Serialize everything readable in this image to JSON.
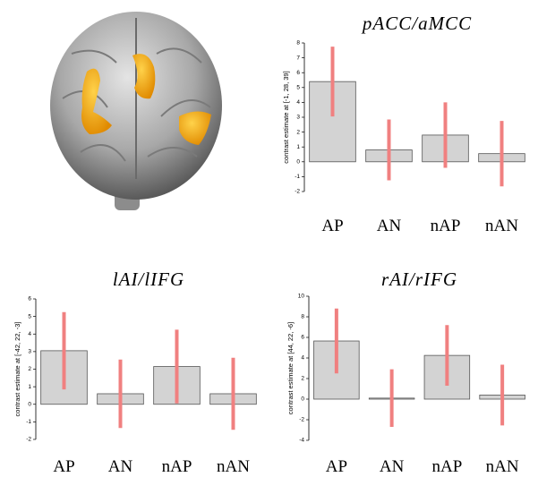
{
  "chart_data": [
    {
      "type": "bar",
      "title": "pACC/aMCC",
      "y_label": "contrast estimate at [-1, 28, 39]",
      "categories": [
        "AP",
        "AN",
        "nAP",
        "nAN"
      ],
      "values": [
        5.4,
        0.8,
        1.8,
        0.55
      ],
      "errors": [
        2.35,
        2.05,
        2.2,
        2.2
      ],
      "color": "#d3d3d3",
      "error_color": "#f08080",
      "ylim": [
        -2,
        8
      ],
      "yticks": [
        -2,
        -1,
        0,
        1,
        2,
        3,
        4,
        5,
        6,
        7,
        8
      ]
    },
    {
      "type": "bar",
      "title": "lAI/lIFG",
      "y_label": "contrast estimate at [-42, 22, -3]",
      "categories": [
        "AP",
        "AN",
        "nAP",
        "nAN"
      ],
      "values": [
        3.05,
        0.6,
        2.15,
        0.6
      ],
      "errors": [
        2.2,
        1.95,
        2.1,
        2.05
      ],
      "color": "#d3d3d3",
      "error_color": "#f08080",
      "ylim": [
        -2,
        6
      ],
      "yticks": [
        -2,
        -1,
        0,
        1,
        2,
        3,
        4,
        5,
        6
      ]
    },
    {
      "type": "bar",
      "title": "rAI/rIFG",
      "y_label": "contrast estimate at [44, 22, -6]",
      "categories": [
        "AP",
        "AN",
        "nAP",
        "nAN"
      ],
      "values": [
        5.65,
        0.1,
        4.25,
        0.4
      ],
      "errors": [
        3.15,
        2.8,
        2.95,
        2.95
      ],
      "color": "#d3d3d3",
      "error_color": "#f08080",
      "ylim": [
        -4,
        10
      ],
      "yticks": [
        -4,
        -2,
        0,
        2,
        4,
        6,
        8,
        10
      ]
    }
  ]
}
